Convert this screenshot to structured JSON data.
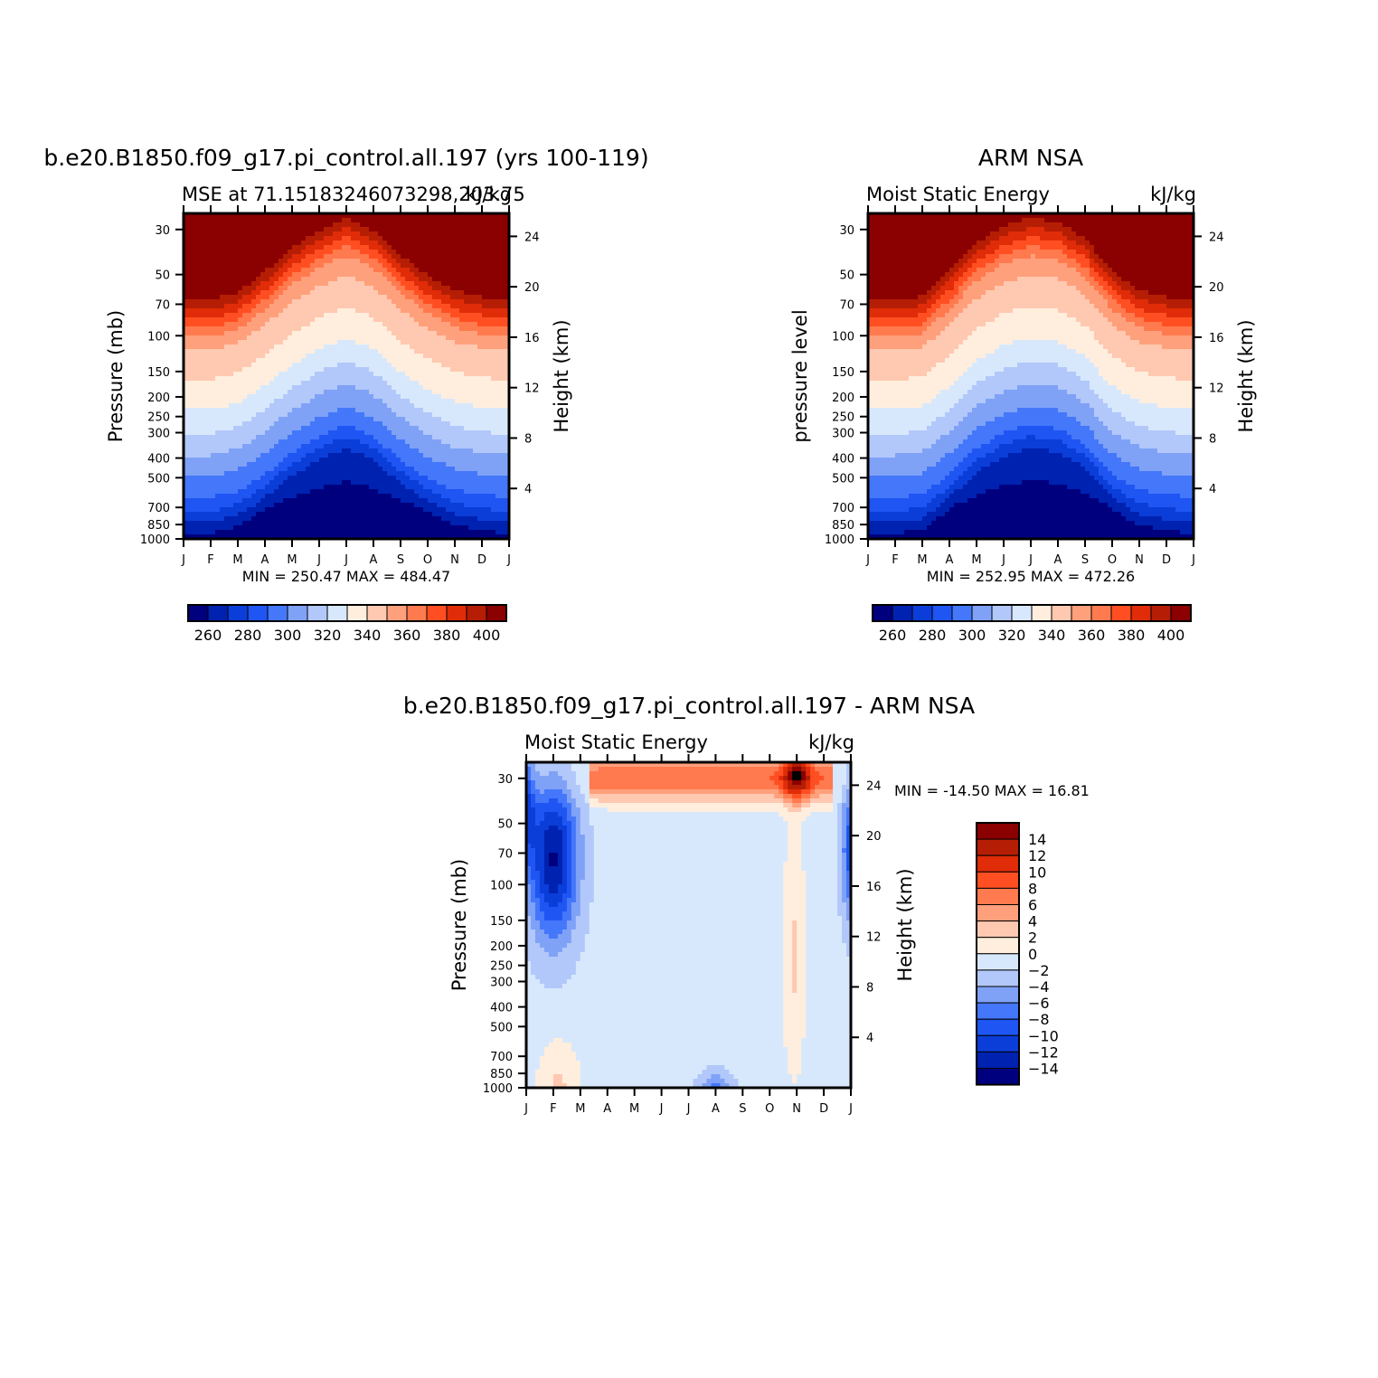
{
  "chart_data": [
    {
      "id": "model",
      "type": "heatmap",
      "title": "b.e20.B1850.f09_g17.pi_control.all.197 (yrs 100-119)",
      "subtitle_left": "MSE at 71.15183246073298,203.75",
      "subtitle_right": "kJ/kg",
      "xlabel": "",
      "ylabel": "Pressure (mb)",
      "ylabel_right": "Height (km)",
      "x_ticks": [
        "J",
        "F",
        "M",
        "A",
        "M",
        "J",
        "J",
        "A",
        "S",
        "O",
        "N",
        "D",
        "J"
      ],
      "y_ticks": [
        30,
        50,
        70,
        100,
        150,
        200,
        250,
        300,
        400,
        500,
        700,
        850,
        1000
      ],
      "y_right_ticks": [
        24,
        20,
        16,
        12,
        8,
        4
      ],
      "ylim": [
        1000,
        25
      ],
      "y_scale": "log",
      "min_text": "MIN = 250.47 MAX = 484.47",
      "colorbar": {
        "orientation": "horizontal",
        "labels": [
          "260",
          "280",
          "300",
          "320",
          "340",
          "360",
          "380",
          "400"
        ],
        "colors": [
          "#00007f",
          "#0022b0",
          "#0b3ed8",
          "#1f55f2",
          "#4477fa",
          "#7fa2f7",
          "#b2c8fa",
          "#d8e8fc",
          "#ffeedd",
          "#ffc8b0",
          "#ffa07c",
          "#ff7a4e",
          "#ff4f22",
          "#e02c08",
          "#b51e04",
          "#8b0000"
        ]
      },
      "contour_levels": [
        255,
        265,
        275,
        285,
        295,
        305,
        315,
        325,
        335,
        345,
        355,
        365,
        375,
        385,
        395
      ],
      "profile": {
        "month_index": [
          0,
          1,
          2,
          3,
          4,
          5,
          6,
          7,
          8,
          9,
          10,
          11,
          12
        ],
        "level_mb": [
          1000,
          930,
          850,
          700,
          500,
          400,
          300,
          250,
          200,
          150,
          100,
          70,
          50,
          30
        ],
        "height_shift": [
          0,
          0,
          0.1,
          0.35,
          0.65,
          0.85,
          1,
          0.85,
          0.55,
          0.3,
          0.12,
          0.04,
          0
        ]
      }
    },
    {
      "id": "obs",
      "type": "heatmap",
      "title": "ARM NSA",
      "subtitle_left": "Moist Static Energy",
      "subtitle_right": "kJ/kg",
      "xlabel": "",
      "ylabel": "pressure level",
      "ylabel_right": "Height (km)",
      "x_ticks": [
        "J",
        "F",
        "M",
        "A",
        "M",
        "J",
        "J",
        "A",
        "S",
        "O",
        "N",
        "D",
        "J"
      ],
      "y_ticks": [
        30,
        50,
        70,
        100,
        150,
        200,
        250,
        300,
        400,
        500,
        700,
        850,
        1000
      ],
      "y_right_ticks": [
        24,
        20,
        16,
        12,
        8,
        4
      ],
      "ylim": [
        1000,
        25
      ],
      "y_scale": "log",
      "min_text": "MIN = 252.95 MAX = 472.26",
      "colorbar": {
        "orientation": "horizontal",
        "labels": [
          "260",
          "280",
          "300",
          "320",
          "340",
          "360",
          "380",
          "400"
        ],
        "colors": [
          "#00007f",
          "#0022b0",
          "#0b3ed8",
          "#1f55f2",
          "#4477fa",
          "#7fa2f7",
          "#b2c8fa",
          "#d8e8fc",
          "#ffeedd",
          "#ffc8b0",
          "#ffa07c",
          "#ff7a4e",
          "#ff4f22",
          "#e02c08",
          "#b51e04",
          "#8b0000"
        ]
      },
      "contour_levels": [
        255,
        265,
        275,
        285,
        295,
        305,
        315,
        325,
        335,
        345,
        355,
        365,
        375,
        385,
        395
      ],
      "profile": {
        "month_index": [
          0,
          1,
          2,
          3,
          4,
          5,
          6,
          7,
          8,
          9,
          10,
          11,
          12
        ],
        "level_mb": [
          1000,
          930,
          850,
          700,
          500,
          400,
          300,
          250,
          200,
          150,
          100,
          70,
          50,
          30
        ],
        "height_shift": [
          0,
          0,
          0.05,
          0.35,
          0.7,
          0.9,
          1,
          0.95,
          0.75,
          0.35,
          0.12,
          0.04,
          0
        ]
      }
    },
    {
      "id": "diff",
      "type": "heatmap",
      "title": "b.e20.B1850.f09_g17.pi_control.all.197 - ARM NSA",
      "subtitle_left": "Moist Static Energy",
      "subtitle_right": "kJ/kg",
      "xlabel": "",
      "ylabel": "Pressure (mb)",
      "ylabel_right": "Height (km)",
      "x_ticks": [
        "J",
        "F",
        "M",
        "A",
        "M",
        "J",
        "J",
        "A",
        "S",
        "O",
        "N",
        "D",
        "J"
      ],
      "y_ticks": [
        30,
        50,
        70,
        100,
        150,
        200,
        250,
        300,
        400,
        500,
        700,
        850,
        1000
      ],
      "y_right_ticks": [
        24,
        20,
        16,
        12,
        8,
        4
      ],
      "ylim": [
        1000,
        25
      ],
      "y_scale": "log",
      "min_text": "MIN = -14.50 MAX =   16.81",
      "colorbar": {
        "orientation": "vertical",
        "labels": [
          "14",
          "12",
          "10",
          "8",
          "6",
          "4",
          "2",
          "0",
          "-2",
          "-4",
          "-6",
          "-8",
          "-10",
          "-12",
          "-14"
        ],
        "colors": [
          "#8b0000",
          "#b51e04",
          "#e02c08",
          "#ff4f22",
          "#ff7a4e",
          "#ffa07c",
          "#ffc8b0",
          "#ffeedd",
          "#d8e8fc",
          "#b2c8fa",
          "#7fa2f7",
          "#4477fa",
          "#1f55f2",
          "#0b3ed8",
          "#0022b0",
          "#00007f"
        ]
      },
      "contour_levels": [
        -15,
        -13,
        -11,
        -9,
        -7,
        -5,
        -3,
        -1,
        1,
        3,
        5,
        7,
        9,
        11,
        13,
        15
      ]
    }
  ]
}
